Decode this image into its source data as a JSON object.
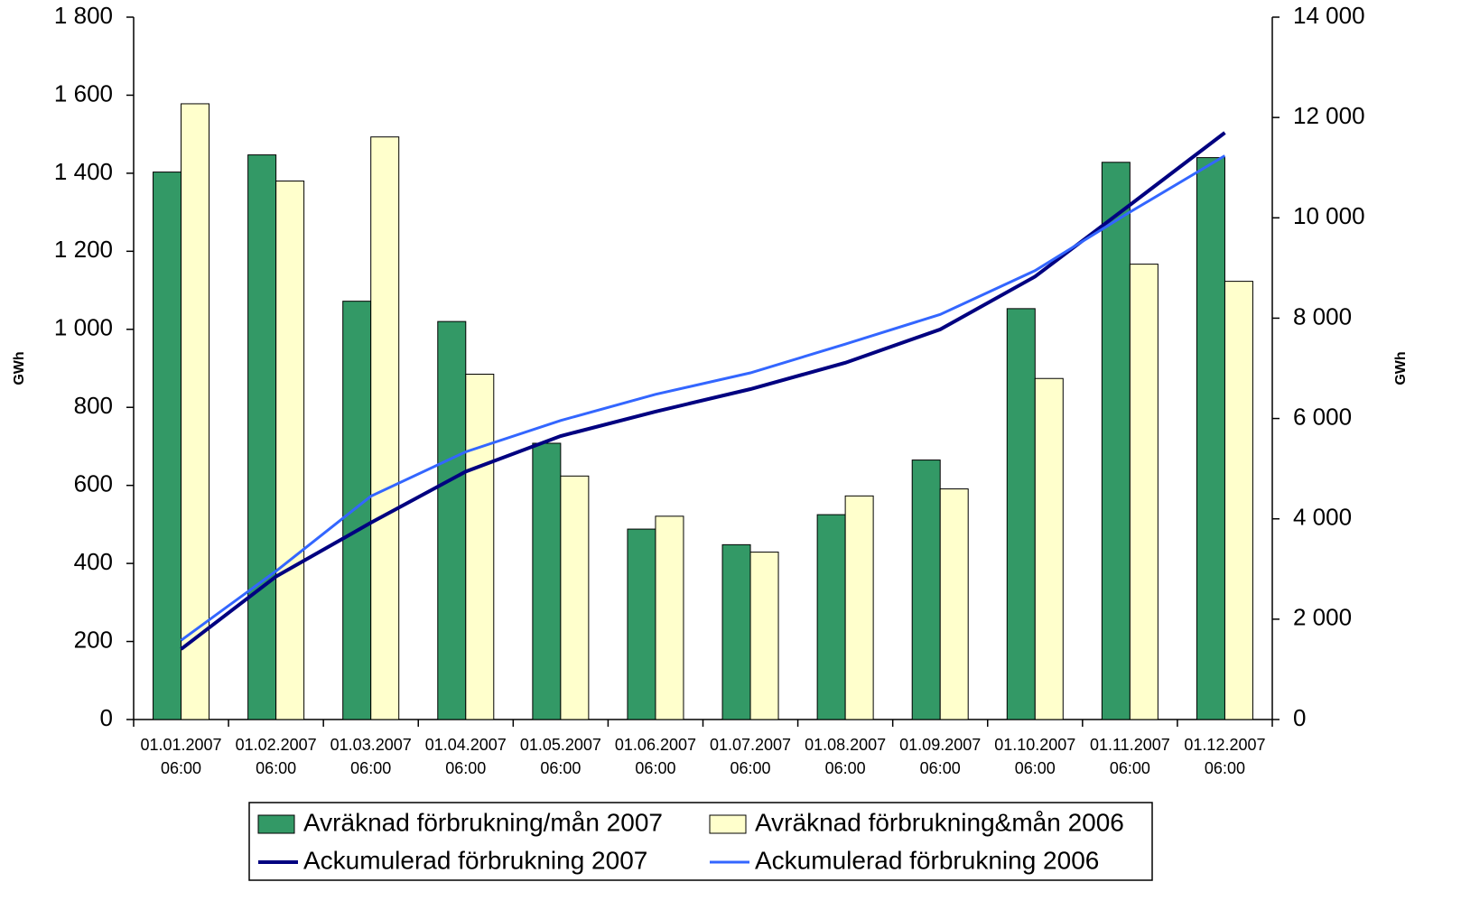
{
  "chart_data": {
    "type": "bar",
    "categories": [
      "01.01.2007 06:00",
      "01.02.2007 06:00",
      "01.03.2007 06:00",
      "01.04.2007 06:00",
      "01.05.2007 06:00",
      "01.06.2007 06:00",
      "01.07.2007 06:00",
      "01.08.2007 06:00",
      "01.09.2007 06:00",
      "01.10.2007 06:00",
      "01.11.2007 06:00",
      "01.12.2007 06:00"
    ],
    "series": [
      {
        "name": "Avräknad förbrukning/mån 2007",
        "type": "bar",
        "color": "#339966",
        "values": [
          1403,
          1447,
          1072,
          1020,
          708,
          488,
          448,
          525,
          665,
          1053,
          1428,
          1440
        ]
      },
      {
        "name": "Avräknad förbrukning&mån 2006",
        "type": "bar",
        "color": "#ffffcc",
        "values": [
          1578,
          1380,
          1493,
          885,
          624,
          521,
          429,
          573,
          591,
          874,
          1167,
          1123
        ]
      },
      {
        "name": "Ackumulerad förbrukning 2007",
        "type": "line",
        "axis": "y2",
        "color": "#000080",
        "values": [
          1403,
          2850,
          3922,
          4942,
          5650,
          6138,
          6586,
          7111,
          7776,
          8829,
          10257,
          11697
        ]
      },
      {
        "name": "Ackumulerad förbrukning 2006",
        "type": "line",
        "axis": "y2",
        "color": "#3366ff",
        "values": [
          1578,
          2958,
          4451,
          5336,
          5960,
          6481,
          6910,
          7483,
          8074,
          8948,
          10115,
          11238
        ]
      }
    ],
    "y_label": "GWh",
    "y2_label": "GWh",
    "ylim": [
      0,
      1800
    ],
    "yticks": [
      0,
      200,
      400,
      600,
      800,
      {
        "value": 1000,
        "label": "1 000"
      },
      {
        "value": 1200,
        "label": "1 200"
      },
      {
        "value": 1400,
        "label": "1 400"
      },
      {
        "value": 1600,
        "label": "1 600"
      },
      {
        "value": 1800,
        "label": "1 800"
      }
    ],
    "y2lim": [
      0,
      14000
    ],
    "y2ticks": [
      0,
      {
        "value": 2000,
        "label": "2 000"
      },
      {
        "value": 4000,
        "label": "4 000"
      },
      {
        "value": 6000,
        "label": "6 000"
      },
      {
        "value": 8000,
        "label": "8 000"
      },
      {
        "value": 10000,
        "label": "10 000"
      },
      {
        "value": 12000,
        "label": "12 000"
      },
      {
        "value": 14000,
        "label": "14 000"
      }
    ],
    "grid": false,
    "legend": "bottom"
  }
}
